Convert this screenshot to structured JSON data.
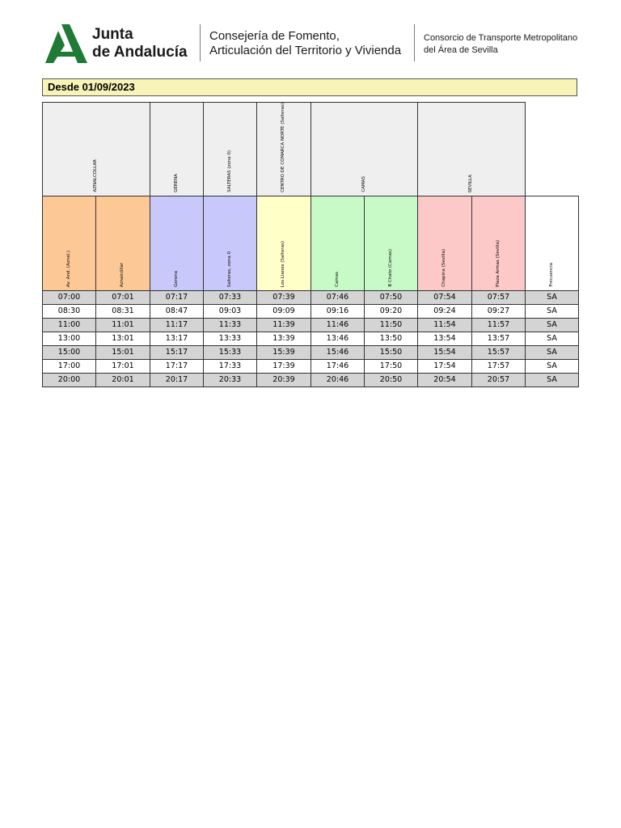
{
  "header": {
    "logo_line1": "Junta",
    "logo_line2": "de Andalucía",
    "consejeria_line1": "Consejería de Fomento,",
    "consejeria_line2": "Articulación del Territorio y Vivienda",
    "consorcio_line1": "Consorcio de Transporte Metropolitano",
    "consorcio_line2": "del Área de Sevilla",
    "brand_color": "#1e7a35"
  },
  "banner": {
    "label": "Desde 01/09/2023",
    "bg_color": "#f8f4b8"
  },
  "zones": [
    {
      "label": "AZNALCOLLAR",
      "colspan": 2
    },
    {
      "label": "GERENA",
      "colspan": 1
    },
    {
      "label": "SALTERAS (zona 0)",
      "colspan": 1
    },
    {
      "label": "CENTRO DE COMARCA NORTE (Salteras)",
      "colspan": 1
    },
    {
      "label": "CAMAS",
      "colspan": 2
    },
    {
      "label": "SEVILLA",
      "colspan": 2
    }
  ],
  "stops": [
    {
      "label": "Av. And. (Aznal.)",
      "color": "#fcc896"
    },
    {
      "label": "Aznalcóllar",
      "color": "#fcc896"
    },
    {
      "label": "Gerena",
      "color": "#c8c8fa"
    },
    {
      "label": "Salteras, zona 0",
      "color": "#c8c8fa"
    },
    {
      "label": "Los Llanos (Salteras)",
      "color": "#ffffc8"
    },
    {
      "label": "Camas",
      "color": "#c8fac8"
    },
    {
      "label": "B Chato (Camas)",
      "color": "#c8fac8"
    },
    {
      "label": "Chapina (Sevilla)",
      "color": "#fcc8c8"
    },
    {
      "label": "Plaza Armas (Sevilla)",
      "color": "#fcc8c8"
    },
    {
      "label": "Frecuencia",
      "color": "#ffffff"
    }
  ],
  "rows": [
    [
      "07:00",
      "07:01",
      "07:17",
      "07:33",
      "07:39",
      "07:46",
      "07:50",
      "07:54",
      "07:57",
      "SA"
    ],
    [
      "08:30",
      "08:31",
      "08:47",
      "09:03",
      "09:09",
      "09:16",
      "09:20",
      "09:24",
      "09:27",
      "SA"
    ],
    [
      "11:00",
      "11:01",
      "11:17",
      "11:33",
      "11:39",
      "11:46",
      "11:50",
      "11:54",
      "11:57",
      "SA"
    ],
    [
      "13:00",
      "13:01",
      "13:17",
      "13:33",
      "13:39",
      "13:46",
      "13:50",
      "13:54",
      "13:57",
      "SA"
    ],
    [
      "15:00",
      "15:01",
      "15:17",
      "15:33",
      "15:39",
      "15:46",
      "15:50",
      "15:54",
      "15:57",
      "SA"
    ],
    [
      "17:00",
      "17:01",
      "17:17",
      "17:33",
      "17:39",
      "17:46",
      "17:50",
      "17:54",
      "17:57",
      "SA"
    ],
    [
      "20:00",
      "20:01",
      "20:17",
      "20:33",
      "20:39",
      "20:46",
      "20:50",
      "20:54",
      "20:57",
      "SA"
    ]
  ],
  "row_shading": [
    "#d4d4d4",
    "#ffffff",
    "#d4d4d4",
    "#ffffff",
    "#d4d4d4",
    "#ffffff",
    "#d4d4d4"
  ]
}
